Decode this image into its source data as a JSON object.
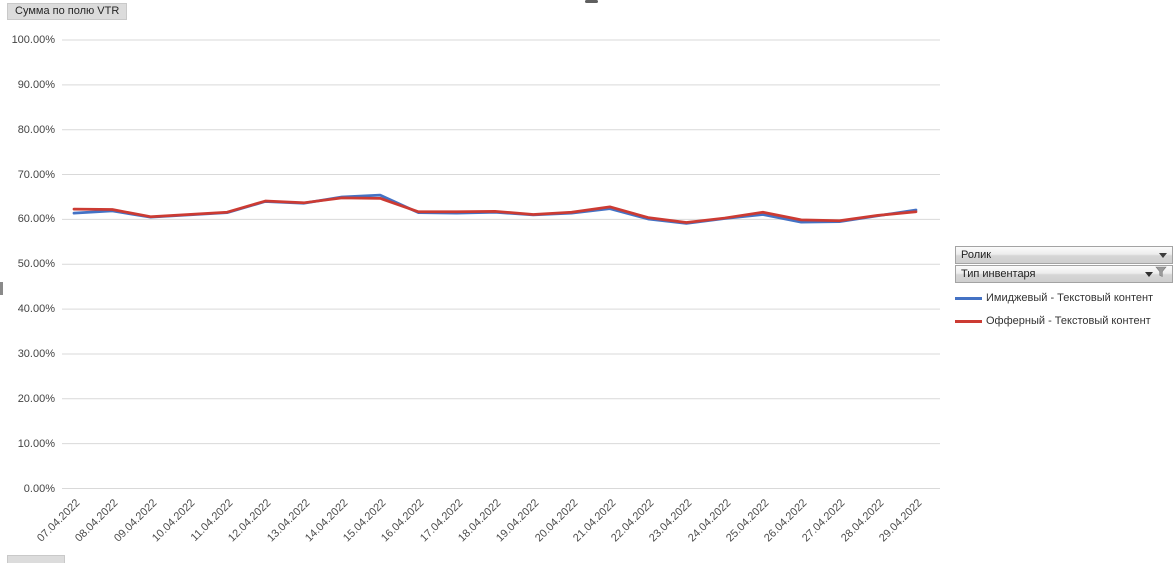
{
  "pivot": {
    "value_field_button": "Сумма по полю VTR",
    "series_field_buttons": [
      {
        "label": "Ролик",
        "has_filter": false
      },
      {
        "label": "Тип инвентаря",
        "has_filter": true
      }
    ]
  },
  "legend": {
    "items": [
      {
        "label": "Имиджевый - Текстовый контент",
        "color": "#4472C4"
      },
      {
        "label": "Офферный - Текстовый контент",
        "color": "#CC3B33"
      }
    ]
  },
  "chart_data": {
    "type": "line",
    "title": "",
    "x": [
      "07.04.2022",
      "08.04.2022",
      "09.04.2022",
      "10.04.2022",
      "11.04.2022",
      "12.04.2022",
      "13.04.2022",
      "14.04.2022",
      "15.04.2022",
      "16.04.2022",
      "17.04.2022",
      "18.04.2022",
      "19.04.2022",
      "20.04.2022",
      "21.04.2022",
      "22.04.2022",
      "23.04.2022",
      "24.04.2022",
      "25.04.2022",
      "26.04.2022",
      "27.04.2022",
      "28.04.2022",
      "29.04.2022"
    ],
    "series": [
      {
        "name": "Имиджевый - Текстовый контент",
        "color": "#4472C4",
        "values": [
          61.4,
          61.9,
          60.5,
          61.0,
          61.5,
          64.0,
          63.6,
          65.0,
          65.4,
          61.5,
          61.4,
          61.6,
          61.0,
          61.4,
          62.4,
          60.1,
          59.1,
          60.2,
          61.1,
          59.4,
          59.5,
          60.8,
          62.1
        ]
      },
      {
        "name": "Офферный - Текстовый контент",
        "color": "#CC3B33",
        "values": [
          62.3,
          62.2,
          60.6,
          61.1,
          61.6,
          64.1,
          63.7,
          64.8,
          64.7,
          61.7,
          61.7,
          61.8,
          61.1,
          61.6,
          62.8,
          60.4,
          59.3,
          60.3,
          61.6,
          59.9,
          59.7,
          60.9,
          61.7
        ]
      }
    ],
    "ylim": [
      0,
      100
    ],
    "y_ticks": [
      "100.00%",
      "90.00%",
      "80.00%",
      "70.00%",
      "60.00%",
      "50.00%",
      "40.00%",
      "30.00%",
      "20.00%",
      "10.00%",
      "0.00%"
    ],
    "y_axis_format": "percent",
    "grid": true,
    "legend_position": "right",
    "gridline_color": "#d9d9d9"
  }
}
